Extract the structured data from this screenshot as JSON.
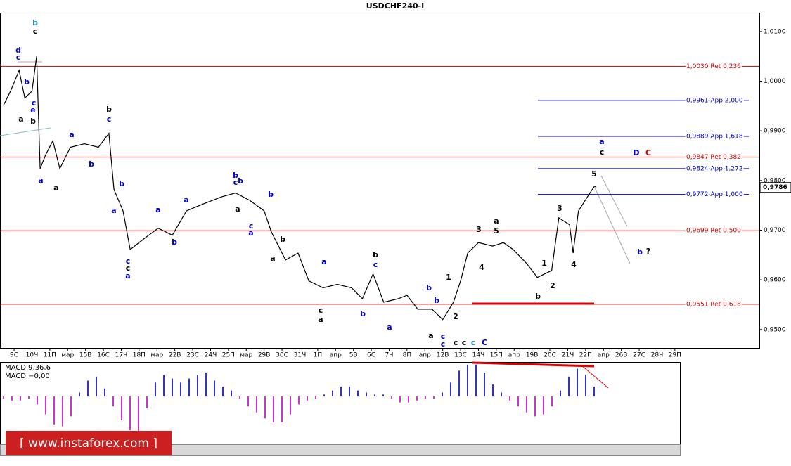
{
  "chart_data": [
    {
      "type": "line",
      "title": "USDCHF240-I",
      "color": "#000000",
      "x": [
        -0.6,
        -0.2,
        0.28,
        0.6,
        1.0,
        1.26,
        1.46,
        1.77,
        2.17,
        2.56,
        3.15,
        3.94,
        4.72,
        5.31,
        5.59,
        6.1,
        6.5,
        7.28,
        8.07,
        8.86,
        9.65,
        10.6,
        11.6,
        12.4,
        13.2,
        14.0,
        14.4,
        15.2,
        15.9,
        16.5,
        17.3,
        18.1,
        18.9,
        19.5,
        20.1,
        20.7,
        21.5,
        22.0,
        22.6,
        23.4,
        24.0,
        24.6,
        25.0,
        25.4,
        26.0,
        26.8,
        27.4,
        27.95,
        28.7,
        29.3,
        30.1,
        30.5,
        31.1,
        31.3,
        31.6,
        32.1,
        32.5,
        32.6
      ],
      "values": [
        0.9951,
        0.998,
        1.0022,
        0.9966,
        0.998,
        1.005,
        0.9824,
        0.9852,
        0.988,
        0.9824,
        0.9867,
        0.9874,
        0.9867,
        0.9895,
        0.9782,
        0.9739,
        0.9661,
        0.9683,
        0.9704,
        0.969,
        0.9739,
        0.9753,
        0.9767,
        0.9775,
        0.976,
        0.9739,
        0.9697,
        0.964,
        0.9654,
        0.9598,
        0.9584,
        0.9591,
        0.9584,
        0.9562,
        0.9612,
        0.9555,
        0.9562,
        0.9569,
        0.9541,
        0.9541,
        0.952,
        0.9555,
        0.9598,
        0.9654,
        0.9675,
        0.9668,
        0.9675,
        0.9661,
        0.9633,
        0.9605,
        0.9619,
        0.9725,
        0.9711,
        0.9654,
        0.9739,
        0.9767,
        0.9789,
        0.9786
      ],
      "xlim": [
        -0.79,
        41.73
      ],
      "xticks": [
        {
          "value": 0,
          "label": "9С"
        },
        {
          "value": 1,
          "label": "10Ч"
        },
        {
          "value": 2,
          "label": "11П"
        },
        {
          "value": 3,
          "label": "мар"
        },
        {
          "value": 4,
          "label": "15В"
        },
        {
          "value": 5,
          "label": "16С"
        },
        {
          "value": 6,
          "label": "17Ч"
        },
        {
          "value": 7,
          "label": "18П"
        },
        {
          "value": 8,
          "label": "мар"
        },
        {
          "value": 9,
          "label": "22В"
        },
        {
          "value": 10,
          "label": "23С"
        },
        {
          "value": 11,
          "label": "24Ч"
        },
        {
          "value": 12,
          "label": "25П"
        },
        {
          "value": 13,
          "label": "мар"
        },
        {
          "value": 14,
          "label": "29В"
        },
        {
          "value": 15,
          "label": "30С"
        },
        {
          "value": 16,
          "label": "31Ч"
        },
        {
          "value": 17,
          "label": "1П"
        },
        {
          "value": 18,
          "label": "апр"
        },
        {
          "value": 19,
          "label": "5В"
        },
        {
          "value": 20,
          "label": "6С"
        },
        {
          "value": 21,
          "label": "7Ч"
        },
        {
          "value": 22,
          "label": "8П"
        },
        {
          "value": 23,
          "label": "апр"
        },
        {
          "value": 24,
          "label": "12В"
        },
        {
          "value": 25,
          "label": "13С"
        },
        {
          "value": 26,
          "label": "14Ч"
        },
        {
          "value": 27,
          "label": "15П"
        },
        {
          "value": 28,
          "label": "апр"
        },
        {
          "value": 29,
          "label": "19В"
        },
        {
          "value": 30,
          "label": "20С"
        },
        {
          "value": 31,
          "label": "21Ч"
        },
        {
          "value": 32,
          "label": "22П"
        },
        {
          "value": 33,
          "label": "апр"
        },
        {
          "value": 34,
          "label": "26В"
        },
        {
          "value": 35,
          "label": "27С"
        },
        {
          "value": 36,
          "label": "28Ч"
        },
        {
          "value": 37,
          "label": "29П"
        }
      ],
      "ylim": [
        0.9463,
        1.0138
      ],
      "yticks": [
        {
          "value": 1.01,
          "label": "1,0100"
        },
        {
          "value": 1.0,
          "label": "1,0000"
        },
        {
          "value": 0.99,
          "label": "0,9900"
        },
        {
          "value": 0.98,
          "label": "0,9800"
        },
        {
          "value": 0.97,
          "label": "0,9700"
        },
        {
          "value": 0.96,
          "label": "0,9600"
        },
        {
          "value": 0.95,
          "label": "0,9500"
        }
      ],
      "levels": [
        {
          "value": 1.003,
          "label": "1,0030 Ret 0,236",
          "color": "#cc0000"
        },
        {
          "value": 0.9961,
          "label": "0,9961 App 2,000",
          "color": "#0000cc"
        },
        {
          "value": 0.9889,
          "label": "0,9889 App 1,618",
          "color": "#0000cc"
        },
        {
          "value": 0.9847,
          "label": "0,9847 Ret 0,382",
          "color": "#cc0000"
        },
        {
          "value": 0.9824,
          "label": "0,9824 App 1,272",
          "color": "#0000cc"
        },
        {
          "value": 0.9772,
          "label": "0,9772 App 1,000",
          "color": "#0000cc"
        },
        {
          "value": 0.9699,
          "label": "0,9699 Ret 0,500",
          "color": "#cc0000"
        },
        {
          "value": 0.9551,
          "label": "0,9551 Ret 0,618",
          "color": "#cc0000"
        }
      ],
      "last_price": {
        "value": 0.9786,
        "label": "0,9786"
      },
      "annotations": [
        {
          "text": "b",
          "color": "#1a8fb0"
        },
        {
          "text": "c",
          "color": "#000000"
        },
        {
          "text": "d",
          "color": "#0000cc"
        },
        {
          "text": "c",
          "color": "#0000cc"
        },
        {
          "text": "b",
          "color": "#0000cc"
        },
        {
          "text": "c",
          "color": "#0000cc"
        },
        {
          "text": "e",
          "color": "#0000cc"
        },
        {
          "text": "a",
          "color": "#000000"
        },
        {
          "text": "b",
          "color": "#000000"
        },
        {
          "text": "a",
          "color": "#0000cc"
        },
        {
          "text": "a",
          "color": "#000000"
        },
        {
          "text": "a",
          "color": "#0000cc"
        },
        {
          "text": "b",
          "color": "#0000cc"
        },
        {
          "text": "b",
          "color": "#000000"
        },
        {
          "text": "c",
          "color": "#0000cc"
        },
        {
          "text": "a",
          "color": "#0000cc"
        },
        {
          "text": "b",
          "color": "#0000cc"
        },
        {
          "text": "c",
          "color": "#0000cc"
        },
        {
          "text": "c",
          "color": "#000000"
        },
        {
          "text": "a",
          "color": "#0000cc"
        },
        {
          "text": "a",
          "color": "#0000cc"
        },
        {
          "text": "b",
          "color": "#0000cc"
        },
        {
          "text": "a",
          "color": "#0000cc"
        },
        {
          "text": "b",
          "color": "#0000cc"
        },
        {
          "text": "c",
          "color": "#0000cc"
        },
        {
          "text": "b",
          "color": "#0000cc"
        },
        {
          "text": "a",
          "color": "#000000"
        },
        {
          "text": "c",
          "color": "#0000cc"
        },
        {
          "text": "a",
          "color": "#0000cc"
        },
        {
          "text": "b",
          "color": "#0000cc"
        },
        {
          "text": "b",
          "color": "#000000"
        },
        {
          "text": "a",
          "color": "#000000"
        },
        {
          "text": "a",
          "color": "#0000cc"
        },
        {
          "text": "c",
          "color": "#000000"
        },
        {
          "text": "a",
          "color": "#000000"
        },
        {
          "text": "b",
          "color": "#000000"
        },
        {
          "text": "c",
          "color": "#0000cc"
        },
        {
          "text": "b",
          "color": "#0000cc"
        },
        {
          "text": "a",
          "color": "#0000cc"
        },
        {
          "text": "b",
          "color": "#0000cc"
        },
        {
          "text": "b",
          "color": "#0000cc"
        },
        {
          "text": "a",
          "color": "#000000"
        },
        {
          "text": "c",
          "color": "#0000cc"
        },
        {
          "text": "c",
          "color": "#0000cc"
        },
        {
          "text": "1",
          "color": "#000000"
        },
        {
          "text": "2",
          "color": "#000000"
        },
        {
          "text": "c",
          "color": "#000000"
        },
        {
          "text": "c",
          "color": "#000000"
        },
        {
          "text": "c",
          "color": "#1a8fb0"
        },
        {
          "text": "C",
          "color": "#0000cc"
        },
        {
          "text": "3",
          "color": "#000000"
        },
        {
          "text": "a",
          "color": "#000000"
        },
        {
          "text": "5",
          "color": "#000000"
        },
        {
          "text": "4",
          "color": "#000000"
        },
        {
          "text": "1",
          "color": "#000000"
        },
        {
          "text": "2",
          "color": "#000000"
        },
        {
          "text": "b",
          "color": "#000000"
        },
        {
          "text": "3",
          "color": "#000000"
        },
        {
          "text": "4",
          "color": "#000000"
        },
        {
          "text": "5",
          "color": "#000000"
        },
        {
          "text": "a",
          "color": "#0000cc"
        },
        {
          "text": "c",
          "color": "#000000"
        },
        {
          "text": "D",
          "color": "#0000cc"
        },
        {
          "text": "C",
          "color": "#cc0000"
        },
        {
          "text": "b",
          "color": "#0000cc"
        },
        {
          "text": "?",
          "color": "#000000"
        }
      ]
    },
    {
      "type": "bar",
      "title": "MACD 9,36,6",
      "subtitle": "MACD =0,00",
      "color": "#3333cc",
      "negative_color": "#cc33cc",
      "values": [
        -1,
        -2,
        -2,
        -1,
        -4,
        -9,
        -14,
        -15,
        -10,
        2,
        8,
        10,
        4,
        -5,
        -12,
        -17,
        -18,
        -6,
        7,
        11,
        9,
        7,
        9,
        11,
        12,
        8,
        5,
        3,
        -1,
        -5,
        -8,
        -11,
        -13,
        -13,
        -9,
        -4,
        -2,
        -1,
        1,
        3,
        5,
        5,
        3,
        2,
        1,
        1,
        -1,
        -3,
        -3,
        -2,
        -1,
        -1,
        2,
        7,
        13,
        16,
        16,
        12,
        6,
        2,
        -2,
        -5,
        -8,
        -10,
        -9,
        -5,
        3,
        10,
        14,
        11,
        5
      ],
      "ylim": [
        -24,
        17
      ]
    }
  ],
  "watermark": "[ www.instaforex.com ]"
}
